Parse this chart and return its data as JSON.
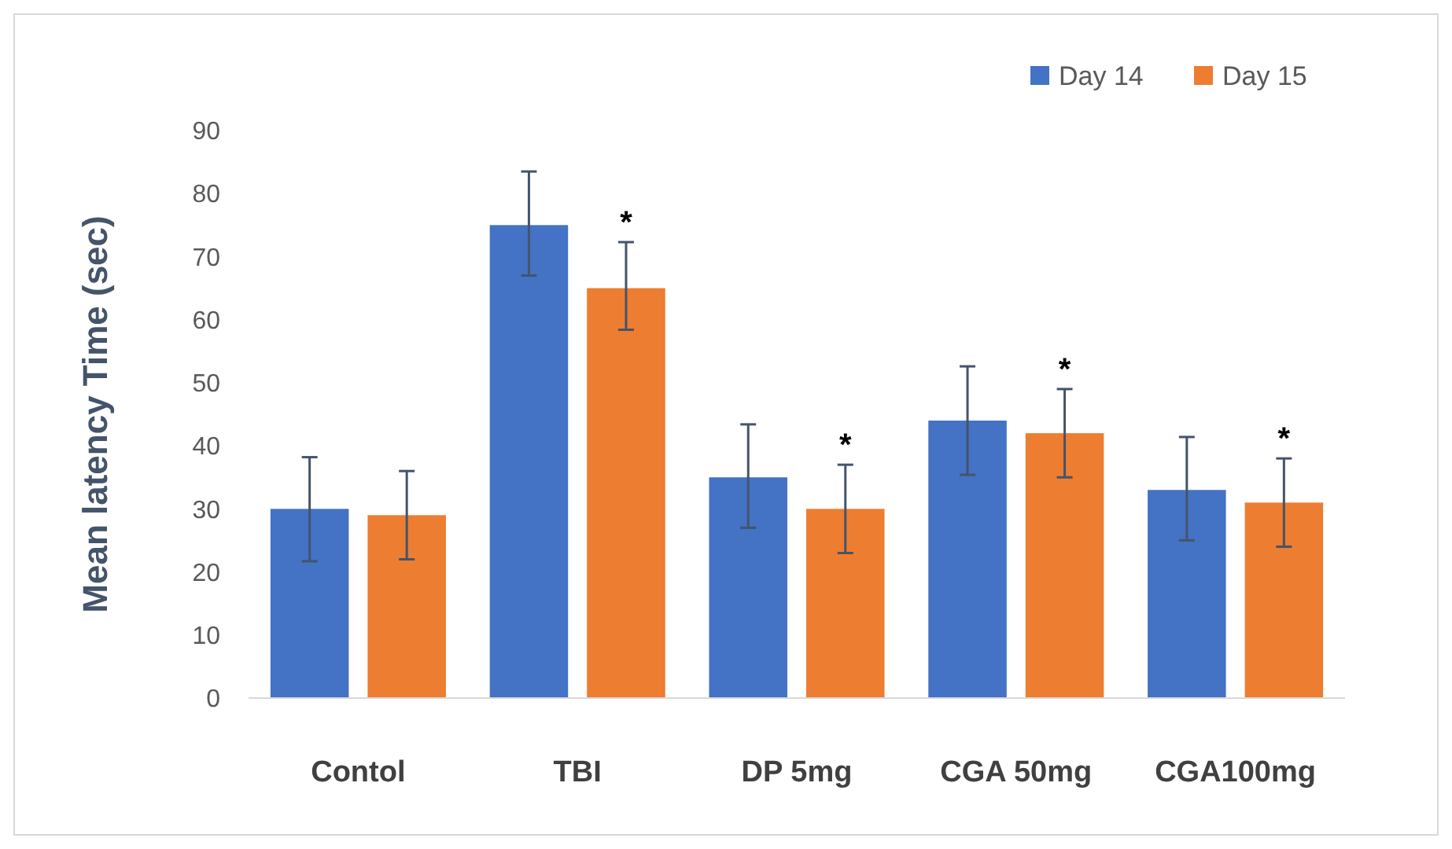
{
  "chart_data": {
    "type": "bar",
    "ylabel": "Mean latency Time (sec)",
    "categories": [
      "Contol",
      "TBI",
      "DP 5mg",
      "CGA 50mg",
      "CGA100mg"
    ],
    "series": [
      {
        "name": "Day 14",
        "color": "#4472c4",
        "values": [
          30,
          75,
          35,
          44,
          33
        ],
        "errors": [
          [
            21.7,
            38.2
          ],
          [
            67,
            83.5
          ],
          [
            27,
            43.4
          ],
          [
            35.4,
            52.6
          ],
          [
            25,
            41.4
          ]
        ]
      },
      {
        "name": "Day 15",
        "color": "#ed7d31",
        "values": [
          29,
          65,
          30,
          42,
          31
        ],
        "errors": [
          [
            22,
            36
          ],
          [
            58.4,
            72.3
          ],
          [
            23,
            37
          ],
          [
            35,
            49
          ],
          [
            24,
            38
          ]
        ]
      }
    ],
    "ylim": [
      0,
      90
    ],
    "yticks": [
      0,
      10,
      20,
      30,
      40,
      50,
      60,
      70,
      80,
      90
    ],
    "grid": false,
    "legend": "top right",
    "annotations": [
      "*",
      "*",
      "*",
      "*"
    ]
  }
}
